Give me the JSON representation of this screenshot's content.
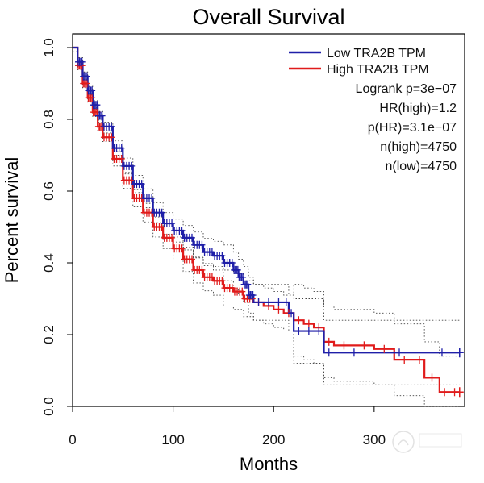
{
  "chart_data": {
    "type": "line",
    "title": "Overall Survival",
    "xlabel": "Months",
    "ylabel": "Percent survival",
    "xlim": [
      0,
      390
    ],
    "ylim": [
      0,
      1.0
    ],
    "xticks": [
      0,
      100,
      200,
      300
    ],
    "yticks": [
      0.0,
      0.2,
      0.4,
      0.6,
      0.8,
      1.0
    ],
    "xtick_labels": [
      "0",
      "100",
      "200",
      "300"
    ],
    "ytick_labels": [
      "0.0",
      "0.2",
      "0.4",
      "0.6",
      "0.8",
      "1.0"
    ],
    "grid": false,
    "legend_position": "top-right",
    "series": [
      {
        "name": "Low TRA2B TPM",
        "color": "#1f1fa8",
        "x": [
          0,
          5,
          10,
          15,
          20,
          25,
          30,
          40,
          50,
          60,
          70,
          80,
          90,
          100,
          110,
          120,
          130,
          140,
          150,
          160,
          165,
          170,
          175,
          180,
          190,
          200,
          210,
          215,
          220,
          230,
          240,
          250,
          260,
          300,
          350,
          385
        ],
        "y": [
          1.0,
          0.96,
          0.92,
          0.88,
          0.84,
          0.81,
          0.78,
          0.72,
          0.67,
          0.62,
          0.58,
          0.54,
          0.51,
          0.49,
          0.47,
          0.45,
          0.43,
          0.42,
          0.4,
          0.38,
          0.36,
          0.34,
          0.31,
          0.29,
          0.29,
          0.29,
          0.29,
          0.26,
          0.21,
          0.21,
          0.21,
          0.15,
          0.15,
          0.15,
          0.15,
          0.15
        ]
      },
      {
        "name": "High TRA2B TPM",
        "color": "#e01b1b",
        "x": [
          0,
          5,
          10,
          15,
          20,
          25,
          30,
          40,
          50,
          60,
          70,
          80,
          90,
          100,
          110,
          120,
          130,
          140,
          150,
          160,
          170,
          180,
          190,
          200,
          210,
          220,
          230,
          240,
          250,
          260,
          280,
          300,
          320,
          340,
          350,
          365,
          375,
          385
        ],
        "y": [
          1.0,
          0.95,
          0.9,
          0.86,
          0.82,
          0.78,
          0.75,
          0.69,
          0.63,
          0.58,
          0.54,
          0.5,
          0.47,
          0.44,
          0.41,
          0.38,
          0.36,
          0.35,
          0.33,
          0.32,
          0.3,
          0.29,
          0.28,
          0.27,
          0.26,
          0.24,
          0.23,
          0.22,
          0.18,
          0.17,
          0.17,
          0.16,
          0.13,
          0.13,
          0.08,
          0.04,
          0.04,
          0.04
        ]
      }
    ],
    "annotations": [
      "Logrank p=3e−07",
      "HR(high)=1.2",
      "p(HR)=3.1e−07",
      "n(high)=4750",
      "n(low)=4750"
    ]
  }
}
